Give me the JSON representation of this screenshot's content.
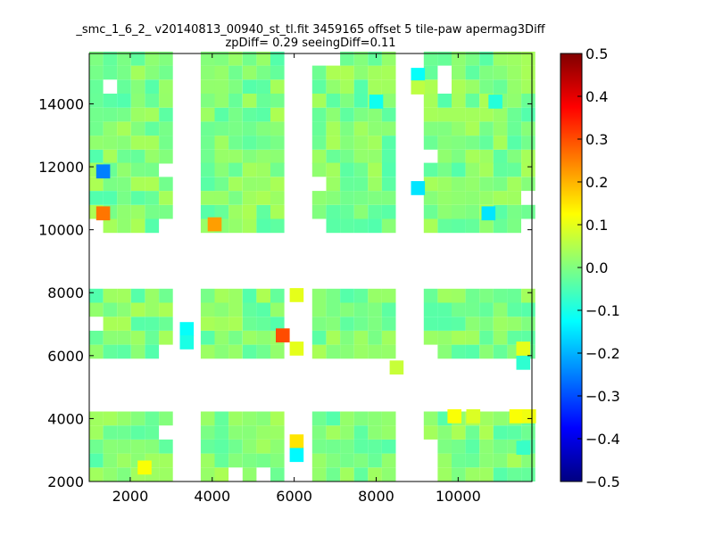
{
  "chart_data": {
    "type": "heatmap",
    "title_line1": "_smc_1_6_2_ v20140813_00940_st_tl.fit 3459165 offset 5 tile-paw apermag3Diff",
    "title_line2": "zpDiff= 0.29 seeingDiff=0.11",
    "xlabel": "",
    "ylabel": "",
    "xlim": [
      1000,
      11800
    ],
    "ylim": [
      2000,
      15600
    ],
    "x_ticks": [
      2000,
      4000,
      6000,
      8000,
      10000
    ],
    "y_ticks": [
      2000,
      4000,
      6000,
      8000,
      10000,
      12000,
      14000
    ],
    "colorbar": {
      "colormap": "jet",
      "range": [
        -0.5,
        0.5
      ],
      "ticks": [
        "0.5",
        "0.4",
        "0.3",
        "0.2",
        "0.1",
        "0.0",
        "−0.1",
        "−0.2",
        "−0.3",
        "−0.4",
        "−0.5"
      ],
      "tick_values": [
        0.5,
        0.4,
        0.3,
        0.2,
        0.1,
        0.0,
        -0.1,
        -0.2,
        -0.3,
        -0.4,
        -0.5
      ]
    },
    "cell_size": [
      340,
      445
    ],
    "columns": [
      {
        "x0": 1000,
        "ncols": 6
      },
      {
        "x0": 3720,
        "ncols": 6
      },
      {
        "x0": 6440,
        "ncols": 6
      },
      {
        "x0": 9160,
        "ncols": 8
      }
    ],
    "row_bands": [
      {
        "y0": 12100,
        "nrows": 8
      },
      {
        "y0": 9900,
        "nrows": 5
      },
      {
        "y0": 5900,
        "nrows": 5
      },
      {
        "y0": 2000,
        "nrows": 5
      }
    ],
    "default_value": 0.0,
    "special_cells": [
      {
        "x": 1170,
        "y": 11630,
        "value": -0.25
      },
      {
        "x": 1170,
        "y": 10300,
        "value": 0.26
      },
      {
        "x": 3890,
        "y": 9950,
        "value": 0.22
      },
      {
        "x": 5550,
        "y": 6420,
        "value": 0.3
      },
      {
        "x": 5890,
        "y": 7700,
        "value": 0.1
      },
      {
        "x": 5890,
        "y": 6000,
        "value": 0.1
      },
      {
        "x": 5890,
        "y": 3050,
        "value": 0.15
      },
      {
        "x": 5890,
        "y": 2620,
        "value": -0.13
      },
      {
        "x": 3210,
        "y": 6620,
        "value": -0.12
      },
      {
        "x": 3210,
        "y": 6200,
        "value": -0.1
      },
      {
        "x": 8850,
        "y": 14700,
        "value": -0.12
      },
      {
        "x": 8850,
        "y": 11100,
        "value": -0.15
      },
      {
        "x": 8850,
        "y": 14300,
        "value": 0.06
      },
      {
        "x": 7830,
        "y": 13850,
        "value": -0.11
      },
      {
        "x": 10570,
        "y": 10300,
        "value": -0.15
      },
      {
        "x": 10740,
        "y": 13850,
        "value": -0.09
      },
      {
        "x": 11420,
        "y": 5550,
        "value": -0.08
      },
      {
        "x": 11420,
        "y": 6000,
        "value": 0.1
      },
      {
        "x": 11420,
        "y": 2850,
        "value": -0.07
      },
      {
        "x": 9740,
        "y": 3850,
        "value": 0.12
      },
      {
        "x": 10200,
        "y": 3850,
        "value": 0.09
      },
      {
        "x": 11250,
        "y": 3850,
        "value": 0.12
      },
      {
        "x": 11560,
        "y": 3850,
        "value": 0.11
      },
      {
        "x": 2180,
        "y": 2220,
        "value": 0.12
      },
      {
        "x": 8330,
        "y": 5400,
        "value": 0.07
      }
    ],
    "missing_cells": [
      {
        "x": 1500,
        "y": 14300
      },
      {
        "x": 3210,
        "y": 15200
      },
      {
        "x": 6610,
        "y": 15200
      },
      {
        "x": 9500,
        "y": 14700
      },
      {
        "x": 9500,
        "y": 14300
      },
      {
        "x": 9160,
        "y": 12100
      },
      {
        "x": 6440,
        "y": 11300
      },
      {
        "x": 6440,
        "y": 9900
      },
      {
        "x": 3210,
        "y": 11630
      },
      {
        "x": 2700,
        "y": 11630
      },
      {
        "x": 1000,
        "y": 9900
      },
      {
        "x": 2870,
        "y": 9900
      },
      {
        "x": 1000,
        "y": 6650
      },
      {
        "x": 3210,
        "y": 7700
      },
      {
        "x": 2870,
        "y": 5900
      },
      {
        "x": 9160,
        "y": 5900
      },
      {
        "x": 2870,
        "y": 3500
      },
      {
        "x": 8830,
        "y": 2000
      },
      {
        "x": 9160,
        "y": 2000
      },
      {
        "x": 9160,
        "y": 2450
      },
      {
        "x": 9160,
        "y": 2900
      },
      {
        "x": 4400,
        "y": 2000
      },
      {
        "x": 5070,
        "y": 2000
      },
      {
        "x": 11080,
        "y": 5500
      },
      {
        "x": 11420,
        "y": 9900
      },
      {
        "x": 11420,
        "y": 10750
      }
    ]
  }
}
